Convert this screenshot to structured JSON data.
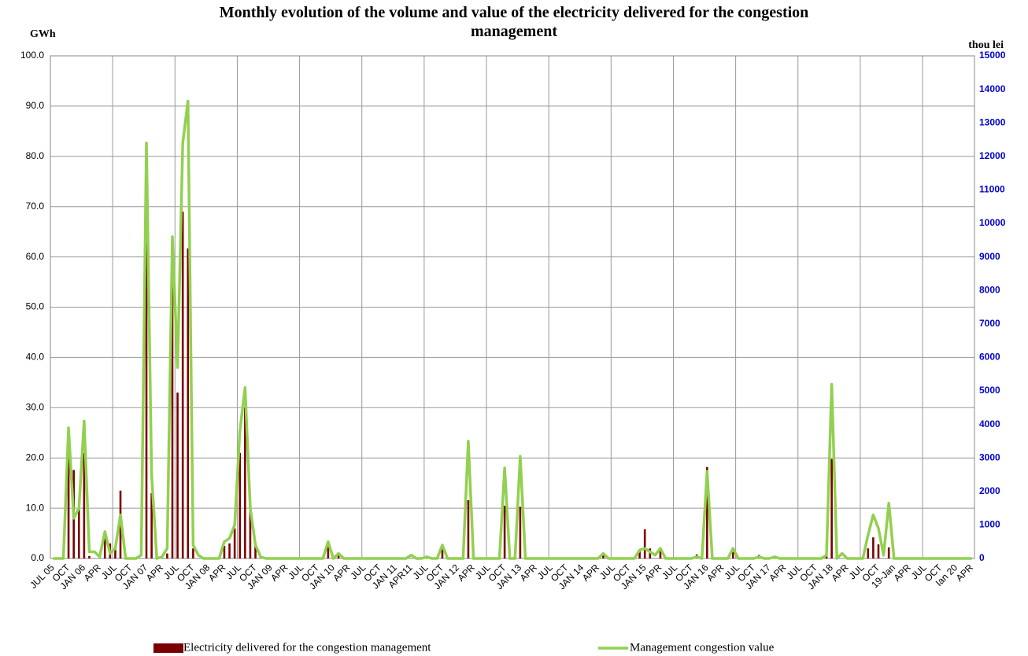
{
  "chart_data": {
    "type": "bar-line",
    "title": "Monthly evolution of the volume and value of the electricity delivered for the congestion management",
    "y_label": "GWh",
    "y2_label": "thou lei",
    "categories": [
      "JUL 05",
      null,
      null,
      "OCT",
      null,
      null,
      "JAN 06",
      null,
      null,
      "APR",
      null,
      null,
      "JUL",
      null,
      null,
      "OCT",
      null,
      null,
      "JAN 07",
      null,
      null,
      "APR",
      null,
      null,
      "JUL",
      null,
      null,
      "OCT",
      null,
      null,
      "JAN 08",
      null,
      null,
      "APR",
      null,
      null,
      "JUL",
      null,
      null,
      "OCT",
      null,
      null,
      "JAN 09",
      null,
      null,
      "APR",
      null,
      null,
      "JUL",
      null,
      null,
      "OCT",
      null,
      null,
      "JAN 10",
      null,
      null,
      "APR",
      null,
      null,
      "JUL",
      null,
      null,
      "OCT",
      null,
      null,
      "JAN 11",
      null,
      null,
      "APR11",
      null,
      null,
      "JUL",
      null,
      null,
      "OCT",
      null,
      null,
      "JAN 12",
      null,
      null,
      "APR",
      null,
      null,
      "JUL",
      null,
      null,
      "OCT",
      null,
      null,
      "JAN 13",
      null,
      null,
      "APR",
      null,
      null,
      "JUL",
      null,
      null,
      "OCT",
      null,
      null,
      "JAN 14",
      null,
      null,
      "APR",
      null,
      null,
      "JUL",
      null,
      null,
      "OCT",
      null,
      null,
      "JAN 15",
      null,
      null,
      "APR",
      null,
      null,
      "JUL",
      null,
      null,
      "OCT",
      null,
      null,
      "JAN 16",
      null,
      null,
      "APR",
      null,
      null,
      "JUL",
      null,
      null,
      "OCT",
      null,
      null,
      "JAN 17",
      null,
      null,
      "APR",
      null,
      null,
      "JUL",
      null,
      null,
      "OCT",
      null,
      null,
      "JAN 18",
      null,
      null,
      "APR",
      null,
      null,
      "JUL",
      null,
      null,
      "OCT",
      null,
      null,
      "19-Jan",
      null,
      null,
      "APR",
      null,
      null,
      "JUL",
      null,
      null,
      "OCT",
      null,
      null,
      "Ian 20",
      null,
      null,
      "APR"
    ],
    "series": [
      {
        "name": "Electricity delivered for the congestion management",
        "type": "bar",
        "color": "#7b0000",
        "values": [
          0,
          0,
          0,
          25,
          17.6,
          10,
          21,
          0.5,
          0,
          0,
          4.5,
          3,
          2,
          13.5,
          0,
          0,
          0,
          0,
          63,
          13,
          0,
          0,
          1,
          60,
          33,
          69,
          61.7,
          2,
          0,
          0,
          0,
          0,
          0,
          2.5,
          3,
          6,
          21,
          30,
          10,
          3,
          0,
          0,
          0,
          0,
          0,
          0,
          0,
          0,
          0,
          0,
          0,
          0,
          0,
          3.5,
          0,
          1,
          0,
          0,
          0,
          0,
          0,
          0,
          0,
          0,
          0,
          0,
          0,
          0,
          0,
          0,
          0,
          0,
          0,
          0,
          0,
          2,
          0,
          0,
          0,
          0,
          11.6,
          0,
          0,
          0,
          0,
          0,
          0,
          10.5,
          0,
          0,
          10.3,
          0,
          0,
          0,
          0,
          0,
          0,
          0,
          0,
          0,
          0,
          0,
          0,
          0,
          0,
          0,
          1,
          0,
          0,
          0,
          0,
          0,
          0,
          1.5,
          5.8,
          2,
          0,
          1.5,
          0,
          0,
          0,
          0,
          0,
          0,
          0.8,
          0,
          18.2,
          0,
          0,
          0,
          0,
          1.3,
          0,
          0,
          0,
          0,
          0.7,
          0,
          0,
          0,
          0,
          0,
          0,
          0,
          0,
          0,
          0,
          0,
          0,
          1.5,
          19.8,
          0,
          0,
          0,
          0,
          0,
          0,
          2,
          4.2,
          2.8,
          0,
          2.2,
          0,
          0,
          0,
          0,
          0,
          0,
          0,
          0,
          0,
          0,
          0,
          0,
          0,
          0,
          0,
          0
        ]
      },
      {
        "name": "Management congestion value",
        "type": "line",
        "axis": "y2",
        "color": "#92d050",
        "values": [
          0,
          0,
          0,
          3900,
          1200,
          1500,
          4100,
          200,
          200,
          50,
          800,
          150,
          300,
          1300,
          0,
          0,
          0,
          100,
          12400,
          2500,
          0,
          50,
          300,
          9600,
          5700,
          12400,
          13650,
          400,
          100,
          0,
          0,
          0,
          0,
          500,
          600,
          1000,
          3800,
          5100,
          1500,
          400,
          50,
          0,
          0,
          0,
          0,
          0,
          0,
          0,
          0,
          0,
          0,
          0,
          0,
          500,
          0,
          150,
          0,
          0,
          0,
          0,
          0,
          0,
          0,
          0,
          0,
          0,
          0,
          0,
          0,
          100,
          0,
          0,
          50,
          0,
          0,
          400,
          0,
          0,
          0,
          0,
          3500,
          0,
          0,
          0,
          0,
          0,
          0,
          2700,
          0,
          0,
          3050,
          0,
          0,
          0,
          0,
          0,
          0,
          0,
          0,
          0,
          0,
          0,
          0,
          0,
          0,
          0,
          150,
          0,
          0,
          0,
          0,
          0,
          0,
          250,
          300,
          200,
          100,
          300,
          0,
          0,
          0,
          0,
          0,
          0,
          50,
          0,
          2600,
          0,
          0,
          0,
          0,
          300,
          0,
          0,
          0,
          0,
          50,
          0,
          0,
          50,
          0,
          0,
          0,
          0,
          0,
          0,
          0,
          0,
          0,
          100,
          5200,
          0,
          150,
          0,
          0,
          0,
          0,
          700,
          1300,
          900,
          100,
          1650,
          0,
          0,
          0,
          0,
          0,
          0,
          0,
          0,
          0,
          0,
          0,
          0,
          0,
          0,
          0,
          0
        ]
      }
    ],
    "ylim": [
      0,
      100
    ],
    "yticks": [
      {
        "value": 0,
        "label": "0.0"
      },
      {
        "value": 10,
        "label": "10.0"
      },
      {
        "value": 20,
        "label": "20.0"
      },
      {
        "value": 30,
        "label": "30.0"
      },
      {
        "value": 40,
        "label": "40.0"
      },
      {
        "value": 50,
        "label": "50.0"
      },
      {
        "value": 60,
        "label": "60.0"
      },
      {
        "value": 70,
        "label": "70.0"
      },
      {
        "value": 80,
        "label": "80.0"
      },
      {
        "value": 90,
        "label": "90.0"
      },
      {
        "value": 100,
        "label": "100.0"
      }
    ],
    "y2lim": [
      0,
      15000
    ],
    "y2ticks": [
      0,
      1000,
      2000,
      3000,
      4000,
      5000,
      6000,
      7000,
      8000,
      9000,
      10000,
      11000,
      12000,
      13000,
      14000,
      15000
    ],
    "grid": true,
    "legend": "bottom"
  }
}
